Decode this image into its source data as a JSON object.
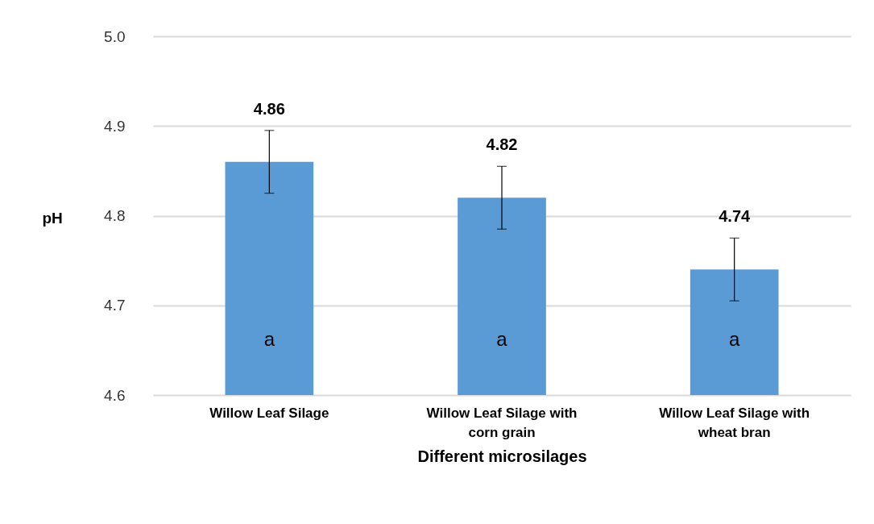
{
  "chart_data": {
    "type": "bar",
    "xlabel": "Different microsilages",
    "ylabel": "pH",
    "categories": [
      "Willow Leaf Silage",
      "Willow Leaf Silage with corn grain",
      "Willow Leaf Silage with wheat bran"
    ],
    "values": [
      4.86,
      4.82,
      4.74
    ],
    "errors": [
      0.035,
      0.035,
      0.035
    ],
    "color": "#5b9bd5",
    "ylim": [
      4.6,
      5.0
    ],
    "yticks": [
      4.6,
      4.7,
      4.8,
      4.9,
      {
        "value": 5.0,
        "label": "5.0"
      }
    ],
    "grid": "y",
    "data_labels": true,
    "annotations": [
      "a",
      "a",
      "a"
    ]
  }
}
